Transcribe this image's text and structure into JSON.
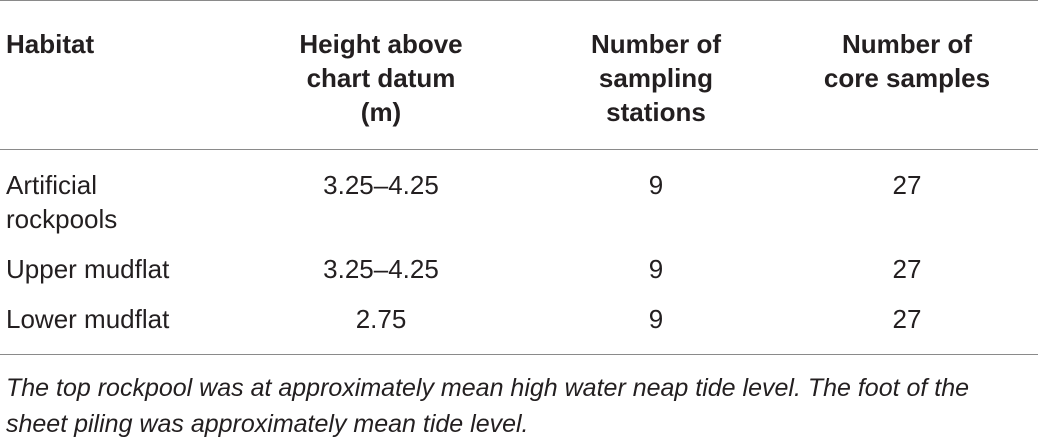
{
  "table": {
    "headers": [
      "Habitat",
      "Height above\nchart datum\n(m)",
      "Number of\nsampling\nstations",
      "Number of\ncore samples"
    ],
    "rows": [
      [
        "Artificial\nrockpools",
        "3.25–4.25",
        "9",
        "27"
      ],
      [
        "Upper mudflat",
        "3.25–4.25",
        "9",
        "27"
      ],
      [
        "Lower mudflat",
        "2.75",
        "9",
        "27"
      ]
    ]
  },
  "footnote": "The top rockpool was at approximately mean high water neap tide level. The foot of the sheet piling was approximately mean tide level."
}
